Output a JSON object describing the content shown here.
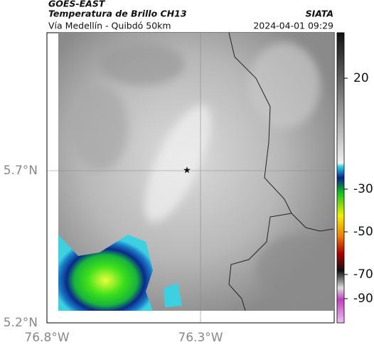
{
  "header": {
    "source": "GOES-EAST",
    "product": "Temperatura de Brillo CH13",
    "agency": "SIATA",
    "route": "Vía Medellín - Quibdó 50km",
    "datetime": "2024-04-01 09:29"
  },
  "axes": {
    "y_labels": [
      "5.7°N",
      "5.2°N"
    ],
    "x_labels": [
      "76.8°W",
      "76.3°W"
    ]
  },
  "colorbar": {
    "tick_labels": [
      "20",
      "-30",
      "-50",
      "-70",
      "-90"
    ]
  }
}
